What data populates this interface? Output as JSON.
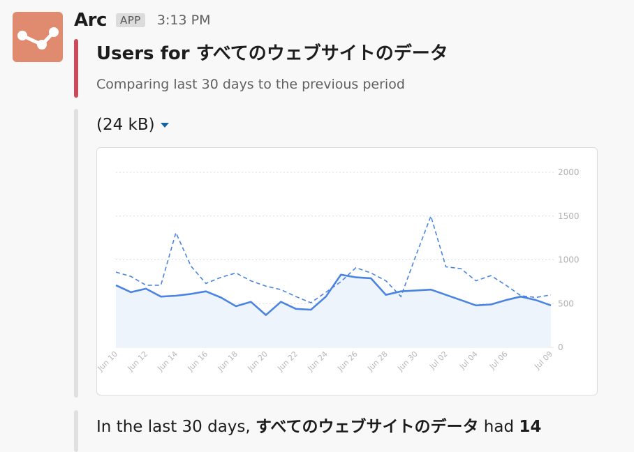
{
  "app": {
    "name": "Arc",
    "badge": "APP",
    "time": "3:13 PM"
  },
  "message": {
    "title": "Users for すべてのウェブサイトのデータ",
    "subtitle": "Comparing last 30 days to the previous period"
  },
  "attachment": {
    "label": "(24 kB)"
  },
  "footer": {
    "prefix": "In the last 30 days, ",
    "site": "すべてのウェブサイトのデータ",
    "mid": " had ",
    "count": "14"
  },
  "colors": {
    "accent_bar": "#cc4b5a",
    "series_line": "#4a84e0",
    "avatar_bg": "#e08a70",
    "link": "#1264a3"
  },
  "icons": {
    "avatar": "line-chart-nodes-icon",
    "caret": "caret-down-icon"
  },
  "chart_data": {
    "type": "line",
    "ylim": [
      0,
      2000
    ],
    "yticks": [
      "2000",
      "1500",
      "1000",
      "500",
      "0"
    ],
    "grid": true,
    "x": [
      "Jun 10",
      "Jun 11",
      "Jun 12",
      "Jun 13",
      "Jun 14",
      "Jun 15",
      "Jun 16",
      "Jun 17",
      "Jun 18",
      "Jun 19",
      "Jun 20",
      "Jun 21",
      "Jun 22",
      "Jun 23",
      "Jun 24",
      "Jun 25",
      "Jun 26",
      "Jun 27",
      "Jun 28",
      "Jun 29",
      "Jun 30",
      "Jul 01",
      "Jul 02",
      "Jul 03",
      "Jul 04",
      "Jul 05",
      "Jul 06",
      "Jul 07",
      "Jul 08",
      "Jul 09"
    ],
    "xtick_labels": [
      "Jun 10",
      "Jun 12",
      "Jun 14",
      "Jun 16",
      "Jun 18",
      "Jun 20",
      "Jun 22",
      "Jun 24",
      "Jun 26",
      "Jun 28",
      "Jun 30",
      "Jul 02",
      "Jul 04",
      "Jul 06",
      "Jul 09"
    ],
    "series": [
      {
        "style": "solid",
        "values": [
          710,
          630,
          670,
          580,
          590,
          610,
          640,
          570,
          470,
          520,
          370,
          520,
          440,
          430,
          580,
          830,
          800,
          790,
          600,
          640,
          650,
          660,
          600,
          540,
          480,
          490,
          540,
          580,
          540,
          480
        ]
      },
      {
        "style": "dashed",
        "values": [
          860,
          810,
          710,
          710,
          1310,
          930,
          730,
          800,
          850,
          760,
          700,
          660,
          580,
          510,
          630,
          750,
          910,
          850,
          760,
          580,
          1050,
          1500,
          920,
          900,
          760,
          820,
          710,
          590,
          570,
          600
        ]
      }
    ]
  }
}
